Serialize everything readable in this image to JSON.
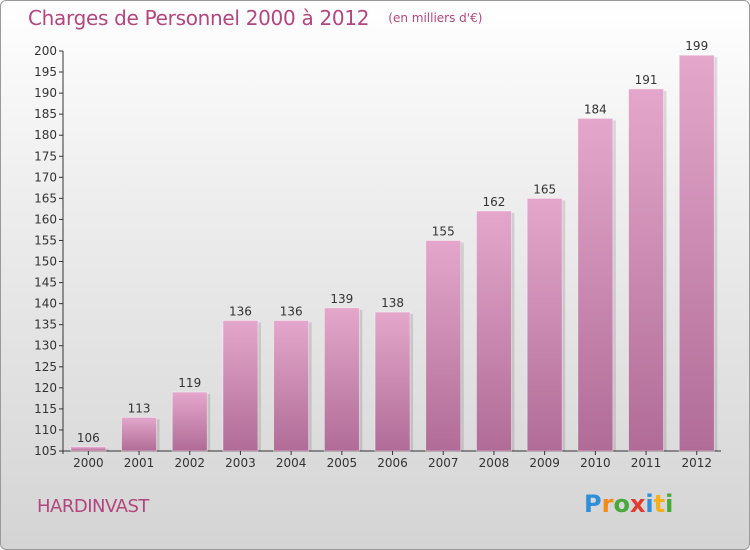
{
  "title": "Charges de Personnel 2000 à 2012",
  "subtitle": "(en milliers d'€)",
  "location_label": "HARDINVAST",
  "logo": {
    "letters": [
      "P",
      "r",
      "o",
      "x",
      "i",
      "t",
      "i"
    ],
    "colors": [
      "#2f8fd8",
      "#f28a1c",
      "#49a83a",
      "#e23b2f",
      "#2f8fd8",
      "#f2b01c",
      "#49a83a"
    ]
  },
  "colors": {
    "title": "#b2467e",
    "bar_light": "#e4a7cb",
    "bar_dark": "#b06c97",
    "axis": "#333333"
  },
  "chart_data": {
    "type": "bar",
    "title": "Charges de Personnel 2000 à 2012",
    "subtitle": "(en milliers d'€)",
    "categories": [
      "2000",
      "2001",
      "2002",
      "2003",
      "2004",
      "2005",
      "2006",
      "2007",
      "2008",
      "2009",
      "2010",
      "2011",
      "2012"
    ],
    "values": [
      106,
      113,
      119,
      136,
      136,
      139,
      138,
      155,
      162,
      165,
      184,
      191,
      199
    ],
    "ylim": [
      105,
      200
    ],
    "yticks": [
      105,
      110,
      115,
      120,
      125,
      130,
      135,
      140,
      145,
      150,
      155,
      160,
      165,
      170,
      175,
      180,
      185,
      190,
      195,
      200
    ],
    "grid": false,
    "legend": "none"
  }
}
